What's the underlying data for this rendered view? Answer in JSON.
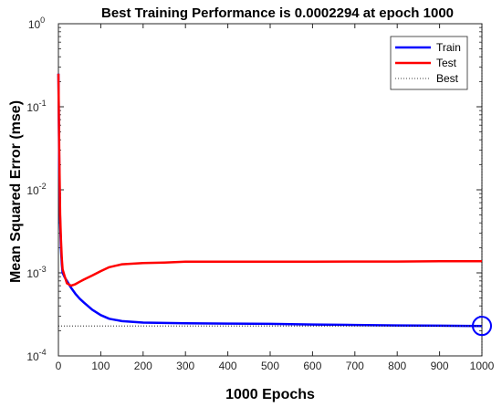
{
  "chart_data": {
    "type": "line",
    "title": "Best Training Performance is 0.0002294 at epoch 1000",
    "xlabel": "1000 Epochs",
    "ylabel": "Mean Squared Error  (mse)",
    "xlim": [
      0,
      1000
    ],
    "ylim": [
      0.0001,
      1
    ],
    "yscale": "log",
    "xticks": [
      "0",
      "100",
      "200",
      "300",
      "400",
      "500",
      "600",
      "700",
      "800",
      "900",
      "1000"
    ],
    "yticks": [
      {
        "base": "10",
        "exp": "0",
        "value": 1
      },
      {
        "base": "10",
        "exp": "-1",
        "value": 0.1
      },
      {
        "base": "10",
        "exp": "-2",
        "value": 0.01
      },
      {
        "base": "10",
        "exp": "-3",
        "value": 0.001
      },
      {
        "base": "10",
        "exp": "-4",
        "value": 0.0001
      }
    ],
    "legend_position": "top-right",
    "series": [
      {
        "name": "Train",
        "color": "#0000ff",
        "style": "solid",
        "x": [
          0,
          2,
          4,
          6,
          8,
          10,
          15,
          20,
          30,
          40,
          50,
          60,
          80,
          100,
          120,
          150,
          200,
          300,
          400,
          500,
          600,
          700,
          800,
          900,
          1000
        ],
        "y": [
          0.25,
          0.02,
          0.004,
          0.002,
          0.0013,
          0.001,
          0.00088,
          0.0008,
          0.00066,
          0.00056,
          0.00049,
          0.00044,
          0.00036,
          0.00031,
          0.00028,
          0.000262,
          0.000252,
          0.000247,
          0.000245,
          0.000243,
          0.000239,
          0.000236,
          0.000233,
          0.000231,
          0.0002294
        ]
      },
      {
        "name": "Test",
        "color": "#ff0000",
        "style": "solid",
        "x": [
          0,
          2,
          4,
          6,
          8,
          10,
          15,
          20,
          30,
          40,
          50,
          60,
          80,
          100,
          120,
          150,
          200,
          250,
          300,
          400,
          500,
          600,
          700,
          800,
          900,
          1000
        ],
        "y": [
          0.25,
          0.03,
          0.005,
          0.0025,
          0.0015,
          0.0011,
          0.0009,
          0.00075,
          0.0007,
          0.00073,
          0.00078,
          0.00083,
          0.00093,
          0.00105,
          0.00117,
          0.00127,
          0.00131,
          0.00133,
          0.00136,
          0.00136,
          0.00136,
          0.00136,
          0.00137,
          0.00137,
          0.00138,
          0.00138
        ]
      },
      {
        "name": "Best",
        "color": "#000000",
        "style": "dotted",
        "best_x": 1000,
        "best_y": 0.0002294
      }
    ]
  }
}
